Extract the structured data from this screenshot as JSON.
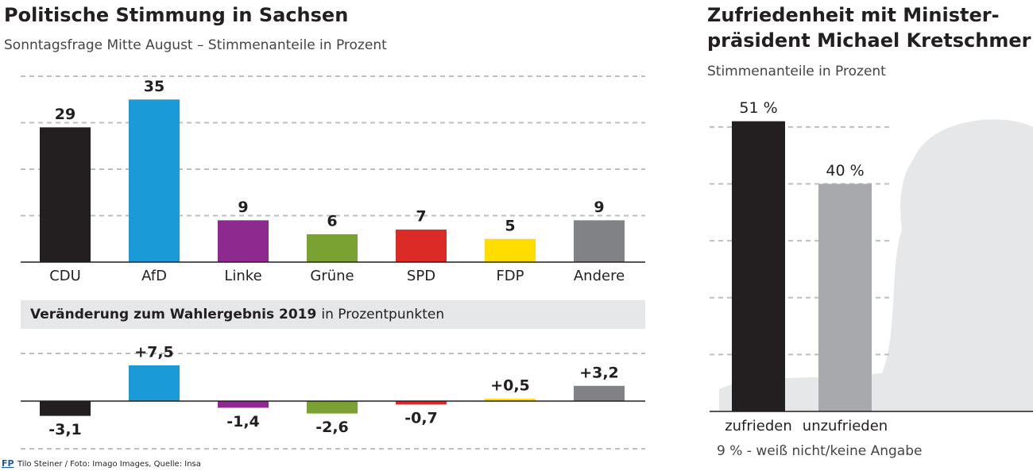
{
  "chart_data": [
    {
      "type": "bar",
      "title": "Politische Stimmung in Sachsen",
      "subtitle": "Sonntagsfrage Mitte August – Stimmenanteile in Prozent",
      "categories": [
        "CDU",
        "AfD",
        "Linke",
        "Grüne",
        "SPD",
        "FDP",
        "Andere"
      ],
      "values": [
        29,
        35,
        9,
        6,
        7,
        5,
        9
      ],
      "colors": [
        "#231f20",
        "#1a9bd7",
        "#8e2a8f",
        "#7aa232",
        "#dc2a27",
        "#ffdd00",
        "#808285"
      ],
      "ylim": [
        0,
        40
      ],
      "gridlines": [
        10,
        20,
        30,
        40
      ]
    },
    {
      "type": "bar",
      "title": "Veränderung zum Wahlergebnis 2019",
      "unit": "in Prozentpunkten",
      "values": [
        -3.1,
        7.5,
        -1.4,
        -2.6,
        -0.7,
        0.5,
        3.2
      ],
      "value_labels": [
        "-3,1",
        "+7,5",
        "-1,4",
        "-2,6",
        "-0,7",
        "+0,5",
        "+3,2"
      ],
      "colors": [
        "#231f20",
        "#1a9bd7",
        "#8e2a8f",
        "#7aa232",
        "#dc2a27",
        "#ffdd00",
        "#808285"
      ],
      "ylim": [
        -10,
        10
      ],
      "gridlines": [
        -10,
        10
      ]
    },
    {
      "type": "bar",
      "title": [
        "Zufriedenheit mit Minister-",
        "präsident Michael Kretschmer"
      ],
      "subtitle": "Stimmenanteile in Prozent",
      "categories": [
        "zufrieden",
        "unzufrieden"
      ],
      "values": [
        51,
        40
      ],
      "value_labels": [
        "51 %",
        "40 %"
      ],
      "colors": [
        "#231f20",
        "#a7a9ac"
      ],
      "ylim": [
        0,
        55
      ],
      "gridlines": [
        10,
        20,
        30,
        40,
        50
      ],
      "note": "9 % - weiß nicht/keine Angabe"
    }
  ],
  "footer": {
    "logo": "FP",
    "credit": "Tilo Steiner / Foto: Imago Images, Quelle: Insa"
  }
}
